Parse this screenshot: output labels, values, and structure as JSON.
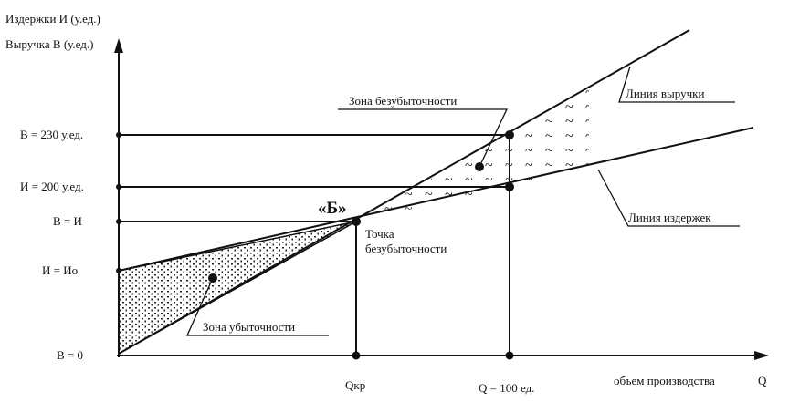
{
  "axes": {
    "y_label_1": "Издержки И (у.ед.)",
    "y_label_2": "Выручка В (у.ед.)",
    "x_label": "объем производства",
    "x_symbol": "Q"
  },
  "y_ticks": [
    "В = 230 у.ед.",
    "И = 200 у.ед.",
    "В = И",
    "И = Ио",
    "В = 0"
  ],
  "x_ticks": [
    "Qкр",
    "Q = 100 ед."
  ],
  "point": {
    "marker": "«Б»",
    "label_lines": [
      "Точка",
      "безубыточности"
    ]
  },
  "annotations": {
    "profit_zone": "Зона безубыточности",
    "revenue_line": "Линия выручки",
    "cost_line": "Линия издержек",
    "loss_zone": "Зона убыточности"
  }
}
